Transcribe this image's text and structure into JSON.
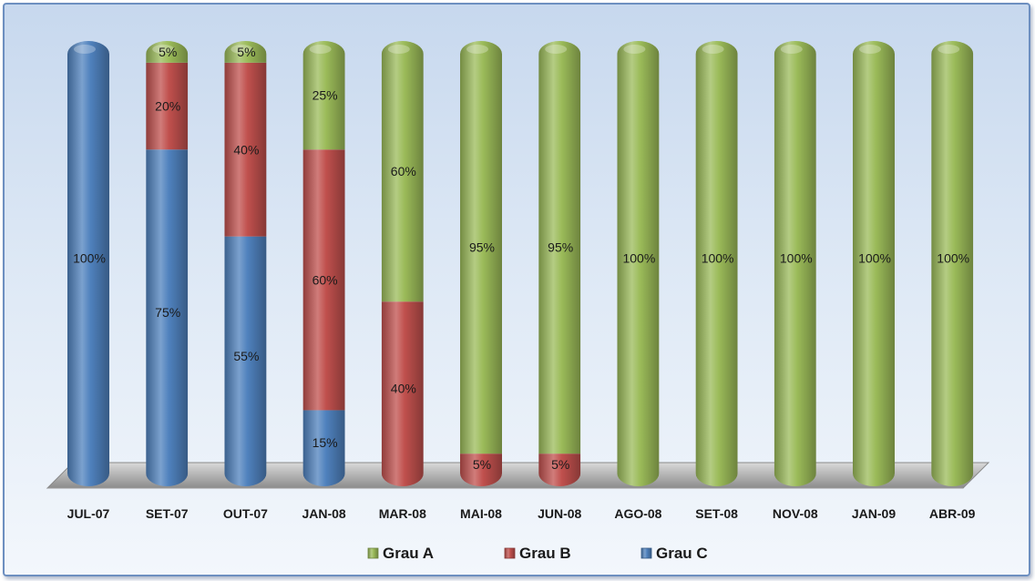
{
  "chart_data": {
    "type": "bar",
    "stacked": true,
    "categories": [
      "JUL-07",
      "SET-07",
      "OUT-07",
      "JAN-08",
      "MAR-08",
      "MAI-08",
      "JUN-08",
      "AGO-08",
      "SET-08",
      "NOV-08",
      "JAN-09",
      "ABR-09"
    ],
    "series": [
      {
        "name": "Grau C",
        "color": "#4f81bd",
        "values": [
          100,
          75,
          55,
          15,
          0,
          0,
          0,
          0,
          0,
          0,
          0,
          0
        ],
        "labels": [
          "100%",
          "75%",
          "55%",
          "15%",
          "",
          "",
          "",
          "",
          "",
          "",
          "",
          ""
        ]
      },
      {
        "name": "Grau B",
        "color": "#c0504d",
        "values": [
          0,
          20,
          40,
          60,
          40,
          5,
          5,
          0,
          0,
          0,
          0,
          0
        ],
        "labels": [
          "",
          "20%",
          "40%",
          "60%",
          "40%",
          "5%",
          "5%",
          "",
          "",
          "",
          "",
          ""
        ]
      },
      {
        "name": "Grau A",
        "color": "#9bbb59",
        "values": [
          0,
          5,
          5,
          25,
          60,
          95,
          95,
          100,
          100,
          100,
          100,
          100
        ],
        "labels": [
          "",
          "5%",
          "5%",
          "25%",
          "60%",
          "95%",
          "95%",
          "100%",
          "100%",
          "100%",
          "100%",
          "100%"
        ]
      }
    ],
    "legend_order": [
      "Grau A",
      "Grau B",
      "Grau C"
    ],
    "ylim": [
      0,
      100
    ],
    "legend": "bottom",
    "grid": false,
    "xlabel": "",
    "ylabel": ""
  }
}
